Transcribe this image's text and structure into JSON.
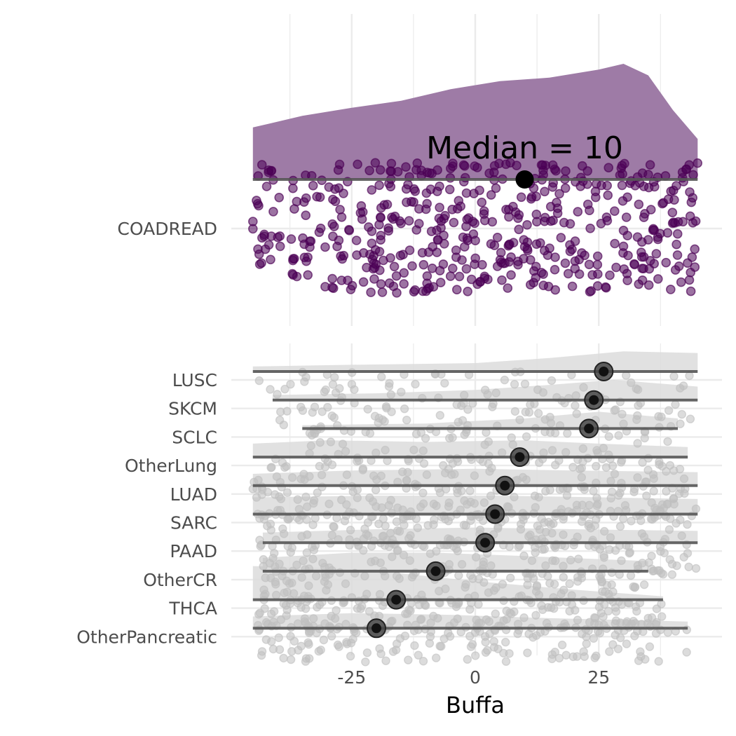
{
  "chart_data": {
    "type": "scatter",
    "subtype": "raincloud (half-density + jittered points + median interval)",
    "xlabel": "Buffa",
    "ylabel": "",
    "xlim": [
      -45,
      45
    ],
    "x_ticks": [
      -25,
      0,
      25
    ],
    "x_tick_labels": [
      "-25",
      "0",
      "25"
    ],
    "grid": true,
    "legend": "none",
    "panels": [
      {
        "name": "highlight",
        "categories": [
          "COADREAD"
        ],
        "color": "#4b0055",
        "density_color": "#9e7ba6",
        "annotation": "Median = 10",
        "groups": [
          {
            "category": "COADREAD",
            "median": 10,
            "min": -45,
            "max": 45,
            "density": [
              [
                -45,
                0.45
              ],
              [
                -35,
                0.55
              ],
              [
                -25,
                0.62
              ],
              [
                -15,
                0.68
              ],
              [
                -5,
                0.78
              ],
              [
                5,
                0.85
              ],
              [
                15,
                0.88
              ],
              [
                25,
                0.95
              ],
              [
                30,
                1.0
              ],
              [
                35,
                0.9
              ],
              [
                40,
                0.6
              ],
              [
                45,
                0.35
              ]
            ]
          }
        ]
      },
      {
        "name": "others",
        "categories": [
          "LUSC",
          "SKCM",
          "SCLC",
          "OtherLung",
          "LUAD",
          "SARC",
          "PAAD",
          "OtherCR",
          "THCA",
          "OtherPancreatic"
        ],
        "color": "#bfbfbf",
        "density_color": "#dcdcdc",
        "groups": [
          {
            "category": "LUSC",
            "median": 26,
            "min": -45,
            "max": 45,
            "density": [
              [
                -45,
                0.15
              ],
              [
                -25,
                0.2
              ],
              [
                0,
                0.25
              ],
              [
                15,
                0.4
              ],
              [
                30,
                0.6
              ],
              [
                45,
                0.55
              ]
            ]
          },
          {
            "category": "SKCM",
            "median": 24,
            "min": -41,
            "max": 45,
            "density": [
              [
                -41,
                0.15
              ],
              [
                -20,
                0.2
              ],
              [
                0,
                0.3
              ],
              [
                15,
                0.45
              ],
              [
                28,
                0.6
              ],
              [
                45,
                0.4
              ]
            ]
          },
          {
            "category": "SCLC",
            "median": 23,
            "min": -35,
            "max": 41,
            "density": [
              [
                -35,
                0.1
              ],
              [
                -10,
                0.15
              ],
              [
                10,
                0.3
              ],
              [
                25,
                0.5
              ],
              [
                41,
                0.3
              ]
            ]
          },
          {
            "category": "OtherLung",
            "median": 9,
            "min": -45,
            "max": 43,
            "density": [
              [
                -45,
                0.4
              ],
              [
                -30,
                0.5
              ],
              [
                -10,
                0.45
              ],
              [
                10,
                0.5
              ],
              [
                25,
                0.4
              ],
              [
                43,
                0.3
              ]
            ]
          },
          {
            "category": "LUAD",
            "median": 6,
            "min": -45,
            "max": 45,
            "density": [
              [
                -45,
                0.35
              ],
              [
                -25,
                0.45
              ],
              [
                0,
                0.5
              ],
              [
                20,
                0.45
              ],
              [
                45,
                0.4
              ]
            ]
          },
          {
            "category": "SARC",
            "median": 4,
            "min": -45,
            "max": 45,
            "density": [
              [
                -45,
                0.5
              ],
              [
                -20,
                0.55
              ],
              [
                5,
                0.55
              ],
              [
                25,
                0.5
              ],
              [
                45,
                0.45
              ]
            ]
          },
          {
            "category": "PAAD",
            "median": 2,
            "min": -43,
            "max": 45,
            "density": [
              [
                -43,
                0.3
              ],
              [
                -20,
                0.4
              ],
              [
                0,
                0.45
              ],
              [
                20,
                0.4
              ],
              [
                45,
                0.35
              ]
            ]
          },
          {
            "category": "OtherCR",
            "median": -8,
            "min": -43,
            "max": 35,
            "density": [
              [
                -43,
                0.4
              ],
              [
                -25,
                0.55
              ],
              [
                -8,
                0.55
              ],
              [
                10,
                0.45
              ],
              [
                35,
                0.3
              ]
            ]
          },
          {
            "category": "THCA",
            "median": -16,
            "min": -45,
            "max": 38,
            "density": [
              [
                -45,
                1.0
              ],
              [
                -30,
                0.95
              ],
              [
                -16,
                0.8
              ],
              [
                0,
                0.55
              ],
              [
                20,
                0.3
              ],
              [
                38,
                0.1
              ]
            ]
          },
          {
            "category": "OtherPancreatic",
            "median": -20,
            "min": -45,
            "max": 43,
            "density": [
              [
                -45,
                0.35
              ],
              [
                -25,
                0.45
              ],
              [
                -5,
                0.4
              ],
              [
                15,
                0.3
              ],
              [
                43,
                0.2
              ]
            ]
          }
        ]
      }
    ]
  }
}
